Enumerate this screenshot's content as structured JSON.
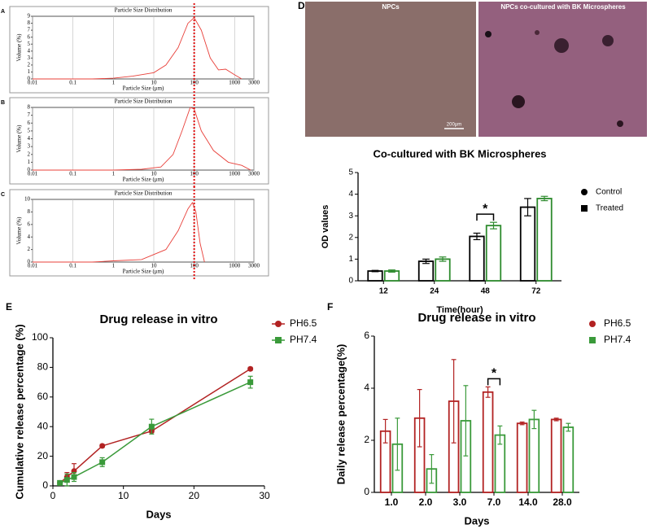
{
  "images": {
    "panel": "D",
    "left_label": "NPCs",
    "right_label": "NPCs co-cultured with BK Microspheres",
    "scale_bar": "200μm"
  },
  "chart_data": [
    {
      "type": "psd",
      "panel": "A",
      "title": "Particle Size Distribution",
      "x_label": "Particle Size (μm)",
      "y_label": "Volume (%)",
      "log_x": true,
      "grid": true,
      "xlim": [
        0.01,
        3000
      ],
      "xticks": [
        0.01,
        0.1,
        1,
        10,
        100,
        1000,
        3000
      ],
      "ylim": [
        0,
        9
      ],
      "yticks": [
        0,
        1,
        2,
        3,
        4,
        5,
        6,
        7,
        8,
        9
      ],
      "reference_x": 100,
      "reference_color": "#e01010",
      "series": [
        {
          "color": "#e8403a",
          "x": [
            0.01,
            0.3,
            1,
            3,
            10,
            20,
            40,
            70,
            100,
            150,
            250,
            400,
            600,
            1000,
            1500
          ],
          "values": [
            0,
            0,
            0.1,
            0.4,
            0.9,
            2,
            4.5,
            8,
            8.8,
            7,
            3,
            1.3,
            1.4,
            0.6,
            0
          ]
        }
      ]
    },
    {
      "type": "psd",
      "panel": "B",
      "title": "Particle Size Distribution",
      "x_label": "Particle Size (μm)",
      "y_label": "Volume (%)",
      "log_x": true,
      "grid": true,
      "xlim": [
        0.01,
        3000
      ],
      "xticks": [
        0.01,
        0.1,
        1,
        10,
        100,
        1000,
        3000
      ],
      "ylim": [
        0,
        8
      ],
      "yticks": [
        0,
        1,
        2,
        3,
        4,
        5,
        6,
        7,
        8
      ],
      "reference_x": 100,
      "reference_color": "#e01010",
      "series": [
        {
          "color": "#e8403a",
          "x": [
            0.01,
            1,
            5,
            15,
            30,
            50,
            80,
            100,
            150,
            300,
            700,
            1500,
            2500
          ],
          "values": [
            0,
            0,
            0.1,
            0.4,
            2,
            5,
            8,
            7.8,
            5,
            2.5,
            1,
            0.6,
            0
          ]
        }
      ]
    },
    {
      "type": "psd",
      "panel": "C",
      "title": "Particle Size Distribution",
      "x_label": "Particle Size (μm)",
      "y_label": "Volume (%)",
      "log_x": true,
      "grid": true,
      "xlim": [
        0.01,
        3000
      ],
      "xticks": [
        0.01,
        0.1,
        1,
        10,
        100,
        1000,
        3000
      ],
      "ylim": [
        0,
        10
      ],
      "yticks": [
        0,
        2,
        4,
        6,
        8,
        10
      ],
      "reference_x": 100,
      "reference_color": "#e01010",
      "series": [
        {
          "color": "#e8403a",
          "x": [
            0.01,
            0.3,
            1,
            5,
            20,
            40,
            70,
            90,
            110,
            140,
            180
          ],
          "values": [
            0,
            0,
            0.2,
            0.4,
            2,
            5,
            8.5,
            9.5,
            8,
            3,
            0
          ]
        }
      ]
    },
    {
      "type": "bar",
      "title": "Co-cultured with BK Microspheres",
      "x_label": "Time(hour)",
      "y_label": "OD values",
      "categories": [
        "12",
        "24",
        "48",
        "72"
      ],
      "ylim": [
        0,
        5
      ],
      "yticks": [
        0,
        1,
        2,
        3,
        4,
        5
      ],
      "legend": "right",
      "legend_marker_color": "#000000",
      "series": [
        {
          "name": "Control",
          "color": "#000000",
          "marker": "circle",
          "values": [
            0.45,
            0.9,
            2.05,
            3.4
          ],
          "errors": [
            0.03,
            0.1,
            0.15,
            0.4
          ]
        },
        {
          "name": "Treated",
          "color": "#2e8b2e",
          "marker": "square",
          "values": [
            0.45,
            1.0,
            2.55,
            3.8
          ],
          "errors": [
            0.05,
            0.1,
            0.15,
            0.1
          ]
        }
      ],
      "annotations": [
        {
          "text": "*",
          "category": "48"
        }
      ]
    },
    {
      "type": "line",
      "panel": "E",
      "title": "Drug release in vitro",
      "x_label": "Days",
      "y_label": "Cumulative release percentage (%)",
      "x": [
        1,
        2,
        3,
        7,
        14,
        28
      ],
      "xlim": [
        0,
        30
      ],
      "xticks": [
        0,
        10,
        20,
        30
      ],
      "ylim": [
        0,
        100
      ],
      "yticks": [
        0,
        20,
        40,
        60,
        80,
        100
      ],
      "legend": "right",
      "series": [
        {
          "name": "PH6.5",
          "color": "#b22222",
          "marker": "circle",
          "values": [
            2,
            6,
            10,
            27,
            37,
            79
          ],
          "errors": [
            1,
            3,
            5,
            1,
            1,
            1
          ]
        },
        {
          "name": "PH7.4",
          "color": "#3a9a3a",
          "marker": "square",
          "values": [
            2,
            4,
            6,
            16,
            40,
            70
          ],
          "errors": [
            1,
            4,
            3,
            3,
            5,
            4
          ]
        }
      ]
    },
    {
      "type": "bar",
      "panel": "F",
      "title": "Drug release in vitro",
      "x_label": "Days",
      "y_label": "Daily release percentage(%)",
      "categories": [
        "1.0",
        "2.0",
        "3.0",
        "7.0",
        "14.0",
        "28.0"
      ],
      "ylim": [
        0,
        6
      ],
      "yticks": [
        0,
        2,
        4,
        6
      ],
      "legend": "right",
      "series": [
        {
          "name": "PH6.5",
          "color": "#b22222",
          "marker": "circle",
          "values": [
            2.35,
            2.85,
            3.5,
            3.85,
            2.65,
            2.8
          ],
          "errors": [
            0.45,
            1.1,
            1.6,
            0.2,
            0.05,
            0.05
          ]
        },
        {
          "name": "PH7.4",
          "color": "#3a9a3a",
          "marker": "square",
          "values": [
            1.85,
            0.9,
            2.75,
            2.2,
            2.8,
            2.5
          ],
          "errors": [
            1.0,
            0.55,
            1.35,
            0.35,
            0.35,
            0.15
          ]
        }
      ],
      "annotations": [
        {
          "text": "*",
          "category": "7.0"
        }
      ]
    }
  ]
}
